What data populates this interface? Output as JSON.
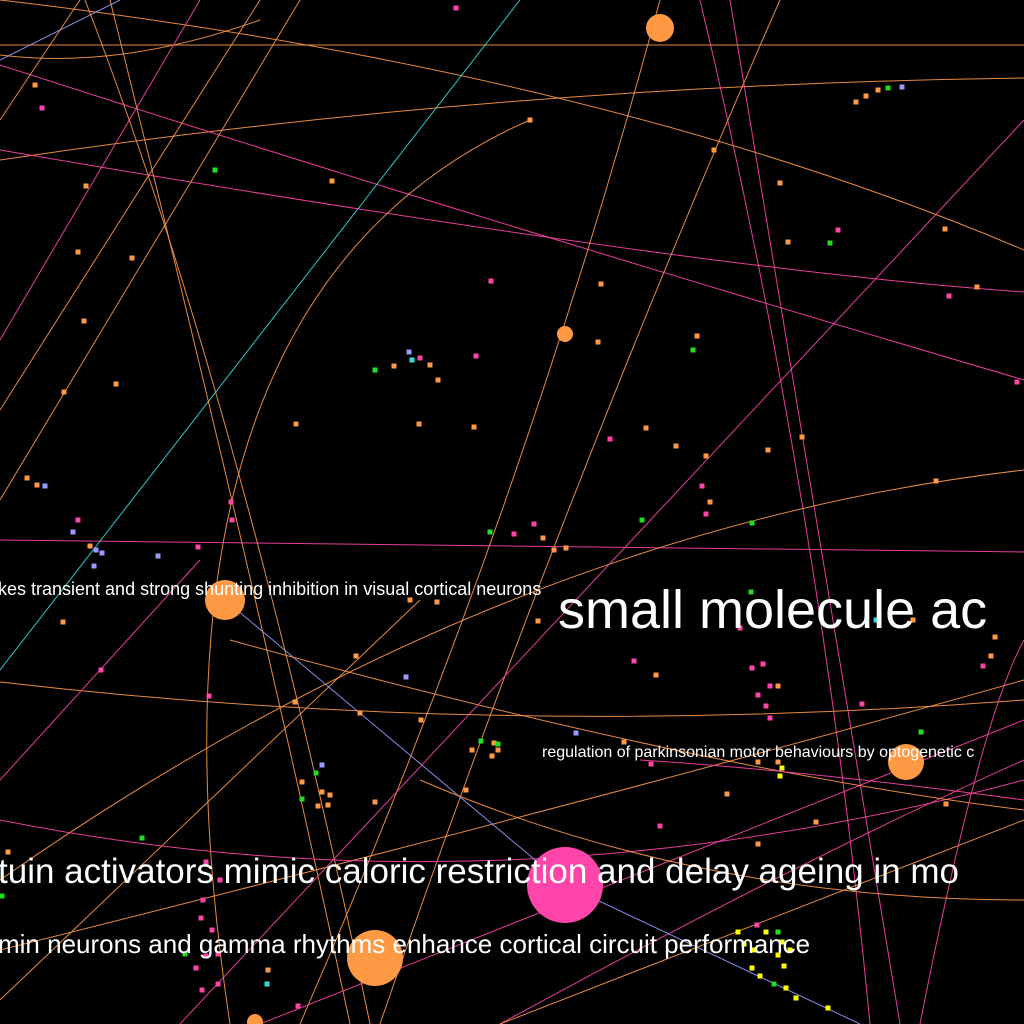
{
  "colors": {
    "background": "#000000",
    "orange": "#ff9944",
    "pink": "#ff44aa",
    "green": "#22dd22",
    "cyan": "#33dddd",
    "lavender": "#9999ff",
    "yellow": "#ffff00",
    "label": "#ffffff"
  },
  "labels": [
    {
      "id": "label-shunting-inhibition",
      "text": "kes transient and strong shunting inhibition in visual cortical neurons"
    },
    {
      "id": "label-small-molecule",
      "text": "small molecule ac"
    },
    {
      "id": "label-parkinsonian",
      "text": "regulation of parkinsonian motor behaviours by optogenetic c"
    },
    {
      "id": "label-sirtuin",
      "text": "tuin activators mimic caloric restriction and delay ageing in mo"
    },
    {
      "id": "label-gamma-rhythms",
      "text": "min neurons and gamma rhythms enhance cortical circuit performance"
    }
  ],
  "nodes": [
    {
      "id": "node-a",
      "color": "orange",
      "weight": 14
    },
    {
      "id": "node-b",
      "color": "orange",
      "weight": 8
    },
    {
      "id": "node-c",
      "color": "orange",
      "weight": 20
    },
    {
      "id": "node-d",
      "color": "orange",
      "weight": 18
    },
    {
      "id": "node-e",
      "color": "pink",
      "weight": 38
    },
    {
      "id": "node-f",
      "color": "orange",
      "weight": 28
    },
    {
      "id": "node-g",
      "color": "orange",
      "weight": 8
    }
  ]
}
